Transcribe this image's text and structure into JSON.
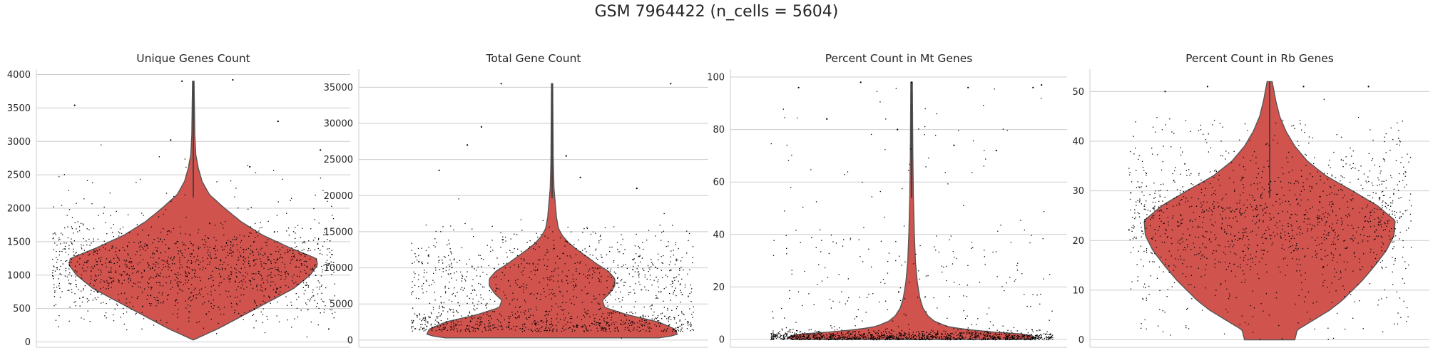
{
  "figure": {
    "suptitle": "GSM 7964422 (n_cells = 5604)",
    "violin_color": "#d1534e",
    "point_color": "#000000",
    "grid_color": "#cccccc"
  },
  "chart_data": [
    {
      "type": "violin",
      "title": "Unique Genes Count",
      "xlabel": "",
      "ylabel": "",
      "ylim": [
        -80,
        4080
      ],
      "yticks": [
        0,
        500,
        1000,
        1500,
        2000,
        2500,
        3000,
        3500,
        4000
      ],
      "grid": true,
      "n_points": 5604,
      "violin_range": [
        30,
        3900
      ],
      "median_approx": 1050,
      "density_peaks": [
        1200
      ],
      "points_range_approx": [
        30,
        3900
      ],
      "outliers": [
        [
          -0.04,
          3900
        ],
        [
          0.14,
          3920
        ],
        [
          -0.42,
          3540
        ],
        [
          0.3,
          3300
        ],
        [
          -0.08,
          3020
        ],
        [
          0.45,
          2870
        ],
        [
          0.2,
          2620
        ]
      ]
    },
    {
      "type": "violin",
      "title": "Total Gene Count",
      "xlabel": "",
      "ylabel": "",
      "ylim": [
        -1000,
        37500
      ],
      "yticks": [
        0,
        5000,
        10000,
        15000,
        20000,
        25000,
        30000,
        35000
      ],
      "grid": true,
      "n_points": 5604,
      "violin_range": [
        300,
        35500
      ],
      "median_approx": 4500,
      "density_peaks": [
        1500,
        9500
      ],
      "points_range_approx": [
        300,
        35500
      ],
      "outliers": [
        [
          -0.18,
          35500
        ],
        [
          0.42,
          35500
        ],
        [
          -0.25,
          29500
        ],
        [
          -0.3,
          27000
        ],
        [
          0.05,
          25500
        ],
        [
          -0.4,
          23500
        ],
        [
          0.1,
          22500
        ],
        [
          0.3,
          21000
        ]
      ]
    },
    {
      "type": "violin",
      "title": "Percent Count in Mt Genes",
      "xlabel": "",
      "ylabel": "",
      "ylim": [
        -3,
        103
      ],
      "yticks": [
        0,
        20,
        40,
        60,
        80,
        100
      ],
      "grid": true,
      "n_points": 5604,
      "violin_range": [
        0,
        98
      ],
      "median_approx": 1.5,
      "density_peaks": [
        1.5
      ],
      "points_range_approx": [
        0,
        98
      ],
      "outliers": [
        [
          -0.4,
          96
        ],
        [
          -0.18,
          98
        ],
        [
          0.0,
          98
        ],
        [
          0.2,
          96
        ],
        [
          0.43,
          96
        ],
        [
          0.46,
          97
        ],
        [
          -0.3,
          84
        ],
        [
          -0.05,
          80
        ],
        [
          0.15,
          74
        ],
        [
          0.3,
          72
        ]
      ]
    },
    {
      "type": "violin",
      "title": "Percent Count in Rb Genes",
      "xlabel": "",
      "ylabel": "",
      "ylim": [
        -1.5,
        54.5
      ],
      "yticks": [
        0,
        10,
        20,
        30,
        40,
        50
      ],
      "grid": true,
      "n_points": 5604,
      "violin_range": [
        0,
        52
      ],
      "median_approx": 22,
      "density_peaks": [
        24
      ],
      "points_range_approx": [
        0,
        52
      ],
      "outliers": [
        [
          -0.37,
          50
        ],
        [
          -0.22,
          51
        ],
        [
          0.12,
          51
        ],
        [
          0.35,
          51
        ]
      ]
    }
  ]
}
